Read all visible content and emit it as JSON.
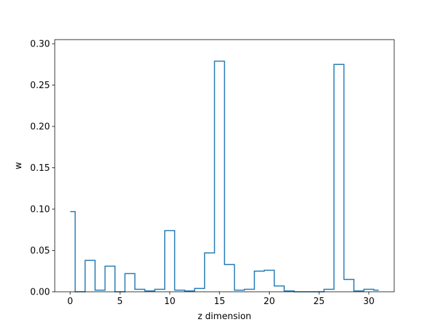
{
  "chart_data": {
    "type": "line",
    "style": "step",
    "title": "",
    "xlabel": "z dimension",
    "ylabel": "w",
    "xlim": [
      -1.55,
      32.55
    ],
    "ylim": [
      0,
      0.305
    ],
    "x_ticks": [
      0,
      5,
      10,
      15,
      20,
      25,
      30
    ],
    "y_ticks": [
      0.0,
      0.05,
      0.1,
      0.15,
      0.2,
      0.25,
      0.3
    ],
    "y_tick_labels": [
      "0.00",
      "0.05",
      "0.10",
      "0.15",
      "0.20",
      "0.25",
      "0.30"
    ],
    "grid": false,
    "line_color": "#1f77b4",
    "x": [
      0,
      1,
      2,
      3,
      4,
      5,
      6,
      7,
      8,
      9,
      10,
      11,
      12,
      13,
      14,
      15,
      16,
      17,
      18,
      19,
      20,
      21,
      22,
      23,
      24,
      25,
      26,
      27,
      28,
      29,
      30,
      31
    ],
    "values": [
      0.097,
      0.0,
      0.038,
      0.002,
      0.031,
      0.0,
      0.022,
      0.003,
      0.001,
      0.003,
      0.074,
      0.002,
      0.001,
      0.004,
      0.047,
      0.279,
      0.033,
      0.002,
      0.003,
      0.025,
      0.026,
      0.007,
      0.001,
      0.0,
      0.0,
      0.0,
      0.003,
      0.275,
      0.015,
      0.001,
      0.003,
      0.002
    ]
  }
}
